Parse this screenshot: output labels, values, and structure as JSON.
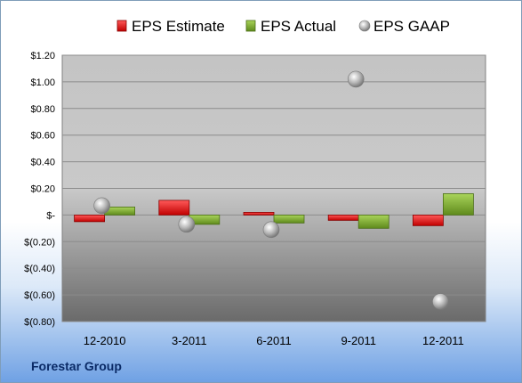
{
  "company": "Forestar Group",
  "chart_data": {
    "type": "bar",
    "categories": [
      "12-2010",
      "3-2011",
      "6-2011",
      "9-2011",
      "12-2011"
    ],
    "series": [
      {
        "name": "EPS Estimate",
        "kind": "bar",
        "color": "#e0201f",
        "values": [
          -0.05,
          0.11,
          0.02,
          -0.04,
          -0.08
        ]
      },
      {
        "name": "EPS Actual",
        "kind": "bar",
        "color": "#7fae2e",
        "values": [
          0.06,
          -0.07,
          -0.06,
          -0.1,
          0.16
        ]
      },
      {
        "name": "EPS GAAP",
        "kind": "scatter",
        "color": "#b9b9b9",
        "values": [
          0.07,
          -0.07,
          -0.11,
          1.02,
          -0.65
        ]
      }
    ],
    "y_ticks": [
      "$1.20",
      "$1.00",
      "$0.80",
      "$0.60",
      "$0.40",
      "$0.20",
      "$-",
      "$(0.20)",
      "$(0.40)",
      "$(0.60)",
      "$(0.80)"
    ],
    "ylim": [
      -0.8,
      1.2
    ],
    "ystep": 0.2,
    "legend_position": "top",
    "grid": true
  }
}
